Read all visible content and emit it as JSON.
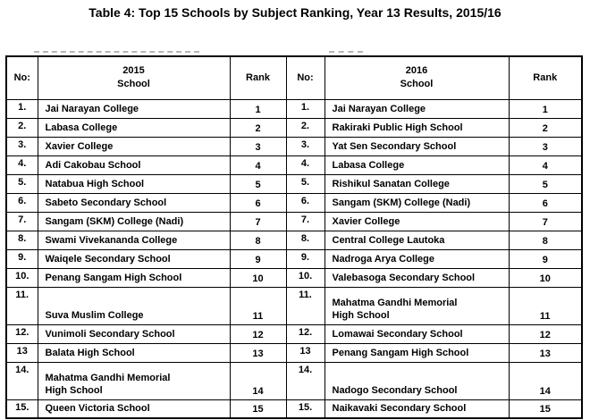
{
  "title": "Table 4: Top 15 Schools by Subject Ranking, Year 13 Results, 2015/16",
  "colors": {
    "border": "#000000",
    "text": "#000000",
    "background": "#ffffff",
    "scan_artifact": "#b5b5b5"
  },
  "table": {
    "col_headers": {
      "no_left": "No:",
      "year_left": "2015",
      "school_left": "School",
      "rank_left": "Rank",
      "no_right": "No:",
      "year_right": "2016",
      "school_right": "School",
      "rank_right": "Rank"
    },
    "rows": [
      {
        "no_2015": "1.",
        "school_2015": "Jai Narayan College",
        "rank_2015": "1",
        "no_2016": "1.",
        "school_2016": "Jai Narayan College",
        "rank_2016": "1",
        "tall": false
      },
      {
        "no_2015": "2.",
        "school_2015": "Labasa College",
        "rank_2015": "2",
        "no_2016": "2.",
        "school_2016": "Rakiraki Public High School",
        "rank_2016": "2",
        "tall": false
      },
      {
        "no_2015": "3.",
        "school_2015": "Xavier College",
        "rank_2015": "3",
        "no_2016": "3.",
        "school_2016": "Yat Sen Secondary School",
        "rank_2016": "3",
        "tall": false
      },
      {
        "no_2015": "4.",
        "school_2015": "Adi Cakobau School",
        "rank_2015": "4",
        "no_2016": "4.",
        "school_2016": "Labasa College",
        "rank_2016": "4",
        "tall": false
      },
      {
        "no_2015": "5.",
        "school_2015": "Natabua High School",
        "rank_2015": "5",
        "no_2016": "5.",
        "school_2016": "Rishikul Sanatan College",
        "rank_2016": "5",
        "tall": false
      },
      {
        "no_2015": "6.",
        "school_2015": "Sabeto Secondary School",
        "rank_2015": "6",
        "no_2016": "6.",
        "school_2016": "Sangam (SKM) College (Nadi)",
        "rank_2016": "6",
        "tall": false
      },
      {
        "no_2015": "7.",
        "school_2015": "Sangam (SKM) College (Nadi)",
        "rank_2015": "7",
        "no_2016": "7.",
        "school_2016": "Xavier College",
        "rank_2016": "7",
        "tall": false
      },
      {
        "no_2015": "8.",
        "school_2015": "Swami Vivekananda College",
        "rank_2015": "8",
        "no_2016": "8.",
        "school_2016": "Central College Lautoka",
        "rank_2016": "8",
        "tall": false
      },
      {
        "no_2015": "9.",
        "school_2015": "Waiqele Secondary School",
        "rank_2015": "9",
        "no_2016": "9.",
        "school_2016": "Nadroga Arya College",
        "rank_2016": "9",
        "tall": false
      },
      {
        "no_2015": "10.",
        "school_2015": "Penang Sangam High School",
        "rank_2015": "10",
        "no_2016": "10.",
        "school_2016": "Valebasoga Secondary School",
        "rank_2016": "10",
        "tall": false
      },
      {
        "no_2015": "11.",
        "school_2015": "Suva Muslim College",
        "rank_2015": "11",
        "no_2016": "11.",
        "school_2016": "Mahatma Gandhi Memorial\nHigh School",
        "rank_2016": "11",
        "tall": true
      },
      {
        "no_2015": "12.",
        "school_2015": "Vunimoli Secondary School",
        "rank_2015": "12",
        "no_2016": "12.",
        "school_2016": "Lomawai Secondary School",
        "rank_2016": "12",
        "tall": false
      },
      {
        "no_2015": "13",
        "school_2015": "Balata High School",
        "rank_2015": "13",
        "no_2016": "13",
        "school_2016": "Penang Sangam High School",
        "rank_2016": "13",
        "tall": false
      },
      {
        "no_2015": "14.",
        "school_2015": "Mahatma Gandhi Memorial\nHigh School",
        "rank_2015": "14",
        "no_2016": "14.",
        "school_2016": "Nadogo Secondary School",
        "rank_2016": "14",
        "tall": true
      },
      {
        "no_2015": "15.",
        "school_2015": "Queen Victoria School",
        "rank_2015": "15",
        "no_2016": "15.",
        "school_2016": "Naikavaki Secondary School",
        "rank_2016": "15",
        "tall": false
      }
    ]
  }
}
